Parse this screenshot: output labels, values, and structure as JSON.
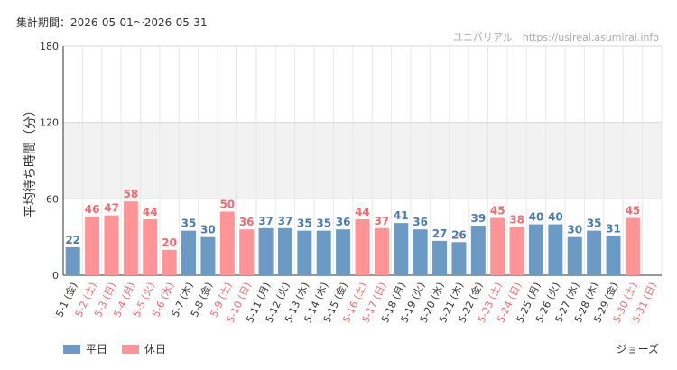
{
  "header": {
    "period_label": "集計期間：2026-05-01～2026-05-31",
    "watermark": "ユニバリアル　https://usjreal.asumirai.info"
  },
  "legend": [
    {
      "label": "平日",
      "color": "#6b9ac4"
    },
    {
      "label": "休日",
      "color": "#ff9496"
    }
  ],
  "attraction": "ジョーズ",
  "chart_data": {
    "type": "bar",
    "ylabel": "平均待ち時間（分）",
    "ylim": [
      0,
      180
    ],
    "yticks": [
      0,
      60,
      120,
      180
    ],
    "shaded_band": [
      60,
      120
    ],
    "categories": [
      "5-1 (金)",
      "5-2 (土)",
      "5-3 (日)",
      "5-4 (月)",
      "5-5 (火)",
      "5-6 (水)",
      "5-7 (木)",
      "5-8 (金)",
      "5-9 (土)",
      "5-10 (日)",
      "5-11 (月)",
      "5-12 (火)",
      "5-13 (水)",
      "5-14 (木)",
      "5-15 (金)",
      "5-16 (土)",
      "5-17 (日)",
      "5-18 (月)",
      "5-19 (火)",
      "5-20 (水)",
      "5-21 (木)",
      "5-22 (金)",
      "5-23 (土)",
      "5-24 (日)",
      "5-25 (月)",
      "5-26 (火)",
      "5-27 (水)",
      "5-28 (木)",
      "5-29 (金)",
      "5-30 (土)",
      "5-31 (日)"
    ],
    "values": [
      22,
      46,
      47,
      58,
      44,
      20,
      35,
      30,
      50,
      36,
      37,
      37,
      35,
      35,
      36,
      44,
      37,
      41,
      36,
      27,
      26,
      39,
      45,
      38,
      40,
      40,
      30,
      35,
      31,
      45,
      null
    ],
    "day_type": [
      "weekday",
      "holiday",
      "holiday",
      "holiday",
      "holiday",
      "holiday",
      "weekday",
      "weekday",
      "holiday",
      "holiday",
      "weekday",
      "weekday",
      "weekday",
      "weekday",
      "weekday",
      "holiday",
      "holiday",
      "weekday",
      "weekday",
      "weekday",
      "weekday",
      "weekday",
      "holiday",
      "holiday",
      "weekday",
      "weekday",
      "weekday",
      "weekday",
      "weekday",
      "holiday",
      "holiday"
    ],
    "colors": {
      "weekday": "#6b9ac4",
      "holiday": "#ff9496",
      "weekday_label": "#4a7ab0",
      "holiday_label": "#f26b6e",
      "weekday_tick": "#333333",
      "holiday_tick": "#f26b6e"
    }
  }
}
